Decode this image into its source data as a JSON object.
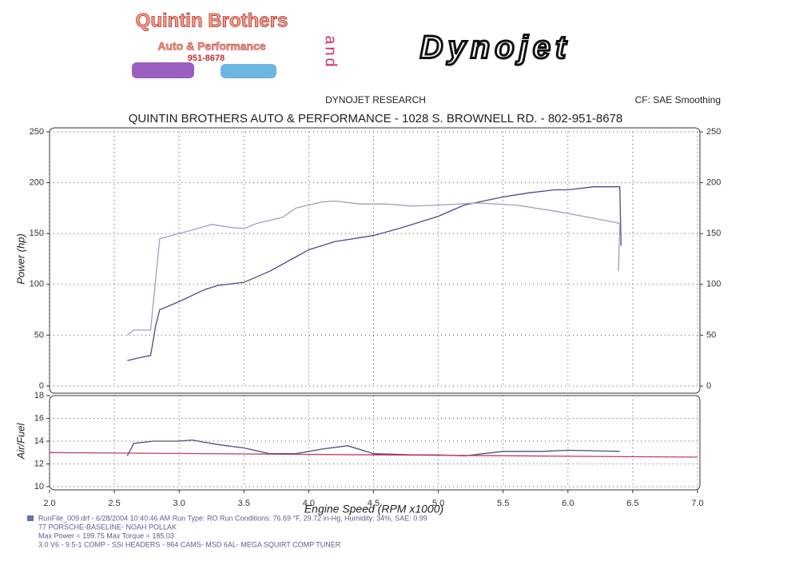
{
  "header": {
    "logo_title": "Quintin Brothers",
    "logo_subtitle": "Auto & Performance",
    "logo_phone": "951-8678",
    "and": "and",
    "brand": "Dynojet",
    "research": "DYNOJET RESEARCH",
    "correction": "CF: SAE  Smoothing",
    "shop": "QUINTIN BROTHERS AUTO & PERFORMANCE - 1028 S. BROWNELL RD. - 802-951-8678"
  },
  "chart_data": [
    {
      "type": "line",
      "y_label": "Power (hp)",
      "xlim": [
        2.0,
        7.0
      ],
      "ylim": [
        0,
        250
      ],
      "yticks": [
        0,
        50,
        100,
        150,
        200,
        250
      ],
      "y2lim": [
        0,
        250
      ],
      "y2ticks": [
        0,
        50,
        100,
        150,
        200,
        250
      ],
      "grid": true,
      "series": [
        {
          "color": "#4a4a8c",
          "x": [
            2.6,
            2.7,
            2.78,
            2.82,
            2.85,
            3.0,
            3.2,
            3.3,
            3.5,
            3.7,
            3.9,
            4.0,
            4.2,
            4.5,
            4.7,
            5.0,
            5.2,
            5.5,
            5.7,
            5.9,
            6.0,
            6.2,
            6.4,
            6.41
          ],
          "values": [
            25,
            28,
            30,
            60,
            75,
            83,
            95,
            99,
            102,
            113,
            127,
            134,
            142,
            148,
            155,
            167,
            178,
            186,
            190,
            193,
            193,
            196,
            196,
            138
          ]
        },
        {
          "color": "#a39cc4",
          "axis": "y2",
          "x": [
            2.6,
            2.65,
            2.78,
            2.85,
            3.0,
            3.2,
            3.25,
            3.4,
            3.5,
            3.6,
            3.8,
            3.9,
            4.1,
            4.2,
            4.4,
            4.6,
            4.8,
            5.0,
            5.3,
            5.6,
            5.9,
            6.2,
            6.4,
            6.39
          ],
          "values": [
            50,
            55,
            55,
            145,
            150,
            157,
            159,
            156,
            155,
            160,
            166,
            175,
            181,
            182,
            179,
            179,
            177,
            178,
            180,
            178,
            172,
            165,
            160,
            113
          ]
        }
      ]
    },
    {
      "type": "line",
      "y_label": "Air/Fuel",
      "x_label": "Engine Speed (RPM x1000)",
      "xlim": [
        2.0,
        7.0
      ],
      "xticks": [
        {
          "value": 2,
          "label": "2.0"
        },
        2.5,
        {
          "value": 3,
          "label": "3.0"
        },
        3.5,
        {
          "value": 4,
          "label": "4.0"
        },
        4.5,
        {
          "value": 5,
          "label": "5.0"
        },
        5.5,
        {
          "value": 6,
          "label": "6.0"
        },
        6.5,
        {
          "value": 7,
          "label": "7.0"
        }
      ],
      "ylim": [
        10,
        18
      ],
      "yticks": [
        10,
        12,
        14,
        16,
        18
      ],
      "grid": true,
      "series": [
        {
          "color": "#4a4a8c",
          "x": [
            2.6,
            2.65,
            2.8,
            3.0,
            3.1,
            3.3,
            3.5,
            3.7,
            3.9,
            4.1,
            4.3,
            4.5,
            4.8,
            5.0,
            5.2,
            5.5,
            5.8,
            6.0,
            6.4
          ],
          "values": [
            12.7,
            13.8,
            14.0,
            14.0,
            14.1,
            13.7,
            13.4,
            12.9,
            12.9,
            13.3,
            13.6,
            12.9,
            12.8,
            12.8,
            12.7,
            13.1,
            13.1,
            13.2,
            13.1
          ]
        },
        {
          "color": "#c0405a",
          "x": [
            2.0,
            7.0
          ],
          "values": [
            13.0,
            12.6
          ]
        }
      ]
    }
  ],
  "footer": [
    "RunFile_009.drf - 6/28/2004 10:40:46 AM  Run Type: RO  Run Conditions: 76.69 °F, 29.72 in-Hg,  Humidity:  34%, SAE: 0.99",
    "77 PORSCHE-BASELINE- NOAH POLLAK",
    "Max Power = 199.75  Max Torque = 185.03",
    "3.0 V6 - 9.5-1 COMP - SSI HEADERS - 964 CAMS- MSD 6AL- MEGA SQUIRT COMP TUNER"
  ]
}
